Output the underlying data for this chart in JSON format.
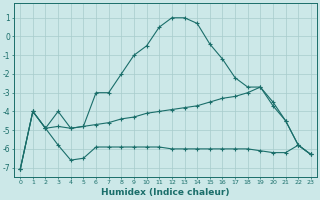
{
  "xlabel": "Humidex (Indice chaleur)",
  "background_color": "#cce8e8",
  "line_color": "#1a6e6a",
  "grid_color": "#a8cccc",
  "xlim": [
    -0.5,
    23.5
  ],
  "ylim": [
    -7.5,
    1.8
  ],
  "yticks": [
    1,
    0,
    -1,
    -2,
    -3,
    -4,
    -5,
    -6,
    -7
  ],
  "xticks": [
    0,
    1,
    2,
    3,
    4,
    5,
    6,
    7,
    8,
    9,
    10,
    11,
    12,
    13,
    14,
    15,
    16,
    17,
    18,
    19,
    20,
    21,
    22,
    23
  ],
  "line1_x": [
    0,
    1,
    2,
    3,
    4,
    5,
    6,
    7,
    8,
    9,
    10,
    11,
    12,
    13,
    14,
    15,
    16,
    17,
    18,
    19,
    20,
    21,
    22,
    23
  ],
  "line1_y": [
    -7.1,
    -4.0,
    -4.9,
    -4.0,
    -4.9,
    -4.8,
    -3.0,
    -3.0,
    -2.0,
    -1.0,
    -0.5,
    0.5,
    1.0,
    1.0,
    0.7,
    -0.4,
    -1.2,
    -2.2,
    -2.7,
    -2.7,
    -3.5,
    -4.5,
    -5.8,
    -6.3
  ],
  "line2_x": [
    0,
    1,
    2,
    3,
    4,
    5,
    6,
    7,
    8,
    9,
    10,
    11,
    12,
    13,
    14,
    15,
    16,
    17,
    18,
    19,
    20,
    21,
    22,
    23
  ],
  "line2_y": [
    -7.1,
    -4.0,
    -4.9,
    -4.8,
    -4.9,
    -4.8,
    -4.7,
    -4.6,
    -4.4,
    -4.3,
    -4.1,
    -4.0,
    -3.9,
    -3.8,
    -3.7,
    -3.5,
    -3.3,
    -3.2,
    -3.0,
    -2.7,
    -3.7,
    -4.5,
    -5.8,
    -6.3
  ],
  "line3_x": [
    0,
    1,
    2,
    3,
    4,
    5,
    6,
    7,
    8,
    9,
    10,
    11,
    12,
    13,
    14,
    15,
    16,
    17,
    18,
    19,
    20,
    21,
    22,
    23
  ],
  "line3_y": [
    -7.1,
    -4.0,
    -4.9,
    -5.8,
    -6.6,
    -6.5,
    -5.9,
    -5.9,
    -5.9,
    -5.9,
    -5.9,
    -5.9,
    -6.0,
    -6.0,
    -6.0,
    -6.0,
    -6.0,
    -6.0,
    -6.0,
    -6.1,
    -6.2,
    -6.2,
    -5.8,
    -6.3
  ]
}
